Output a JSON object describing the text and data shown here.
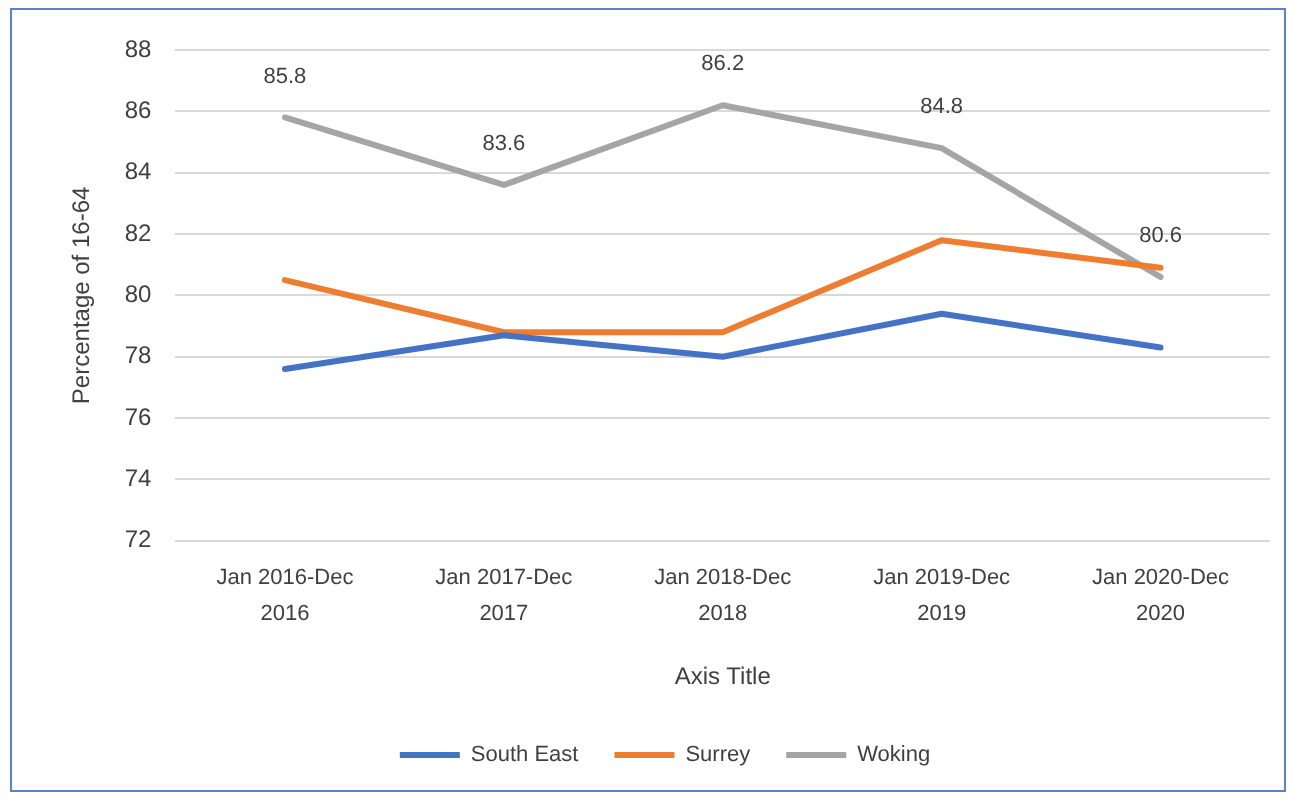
{
  "chart_data": {
    "type": "line",
    "xlabel": "Axis Title",
    "ylabel": "Percentage of 16-64",
    "categories": [
      "Jan 2016-Dec 2016",
      "Jan 2017-Dec 2017",
      "Jan 2018-Dec 2018",
      "Jan 2019-Dec 2019",
      "Jan 2020-Dec 2020"
    ],
    "series": [
      {
        "name": "South East",
        "color": "#4472c4",
        "values": [
          77.6,
          78.7,
          78.0,
          79.4,
          78.3
        ]
      },
      {
        "name": "Surrey",
        "color": "#ed7d31",
        "values": [
          80.5,
          78.8,
          78.8,
          81.8,
          80.9
        ]
      },
      {
        "name": "Woking",
        "color": "#a5a5a5",
        "values": [
          85.8,
          83.6,
          86.2,
          84.8,
          80.6
        ],
        "value_labels": [
          "85.8",
          "83.6",
          "86.2",
          "84.8",
          "80.6"
        ]
      }
    ],
    "ylim": [
      72,
      88
    ],
    "yticks": [
      72,
      74,
      76,
      78,
      80,
      82,
      84,
      86,
      88
    ],
    "grid": "y",
    "legend": "bottom",
    "marker": "none"
  }
}
